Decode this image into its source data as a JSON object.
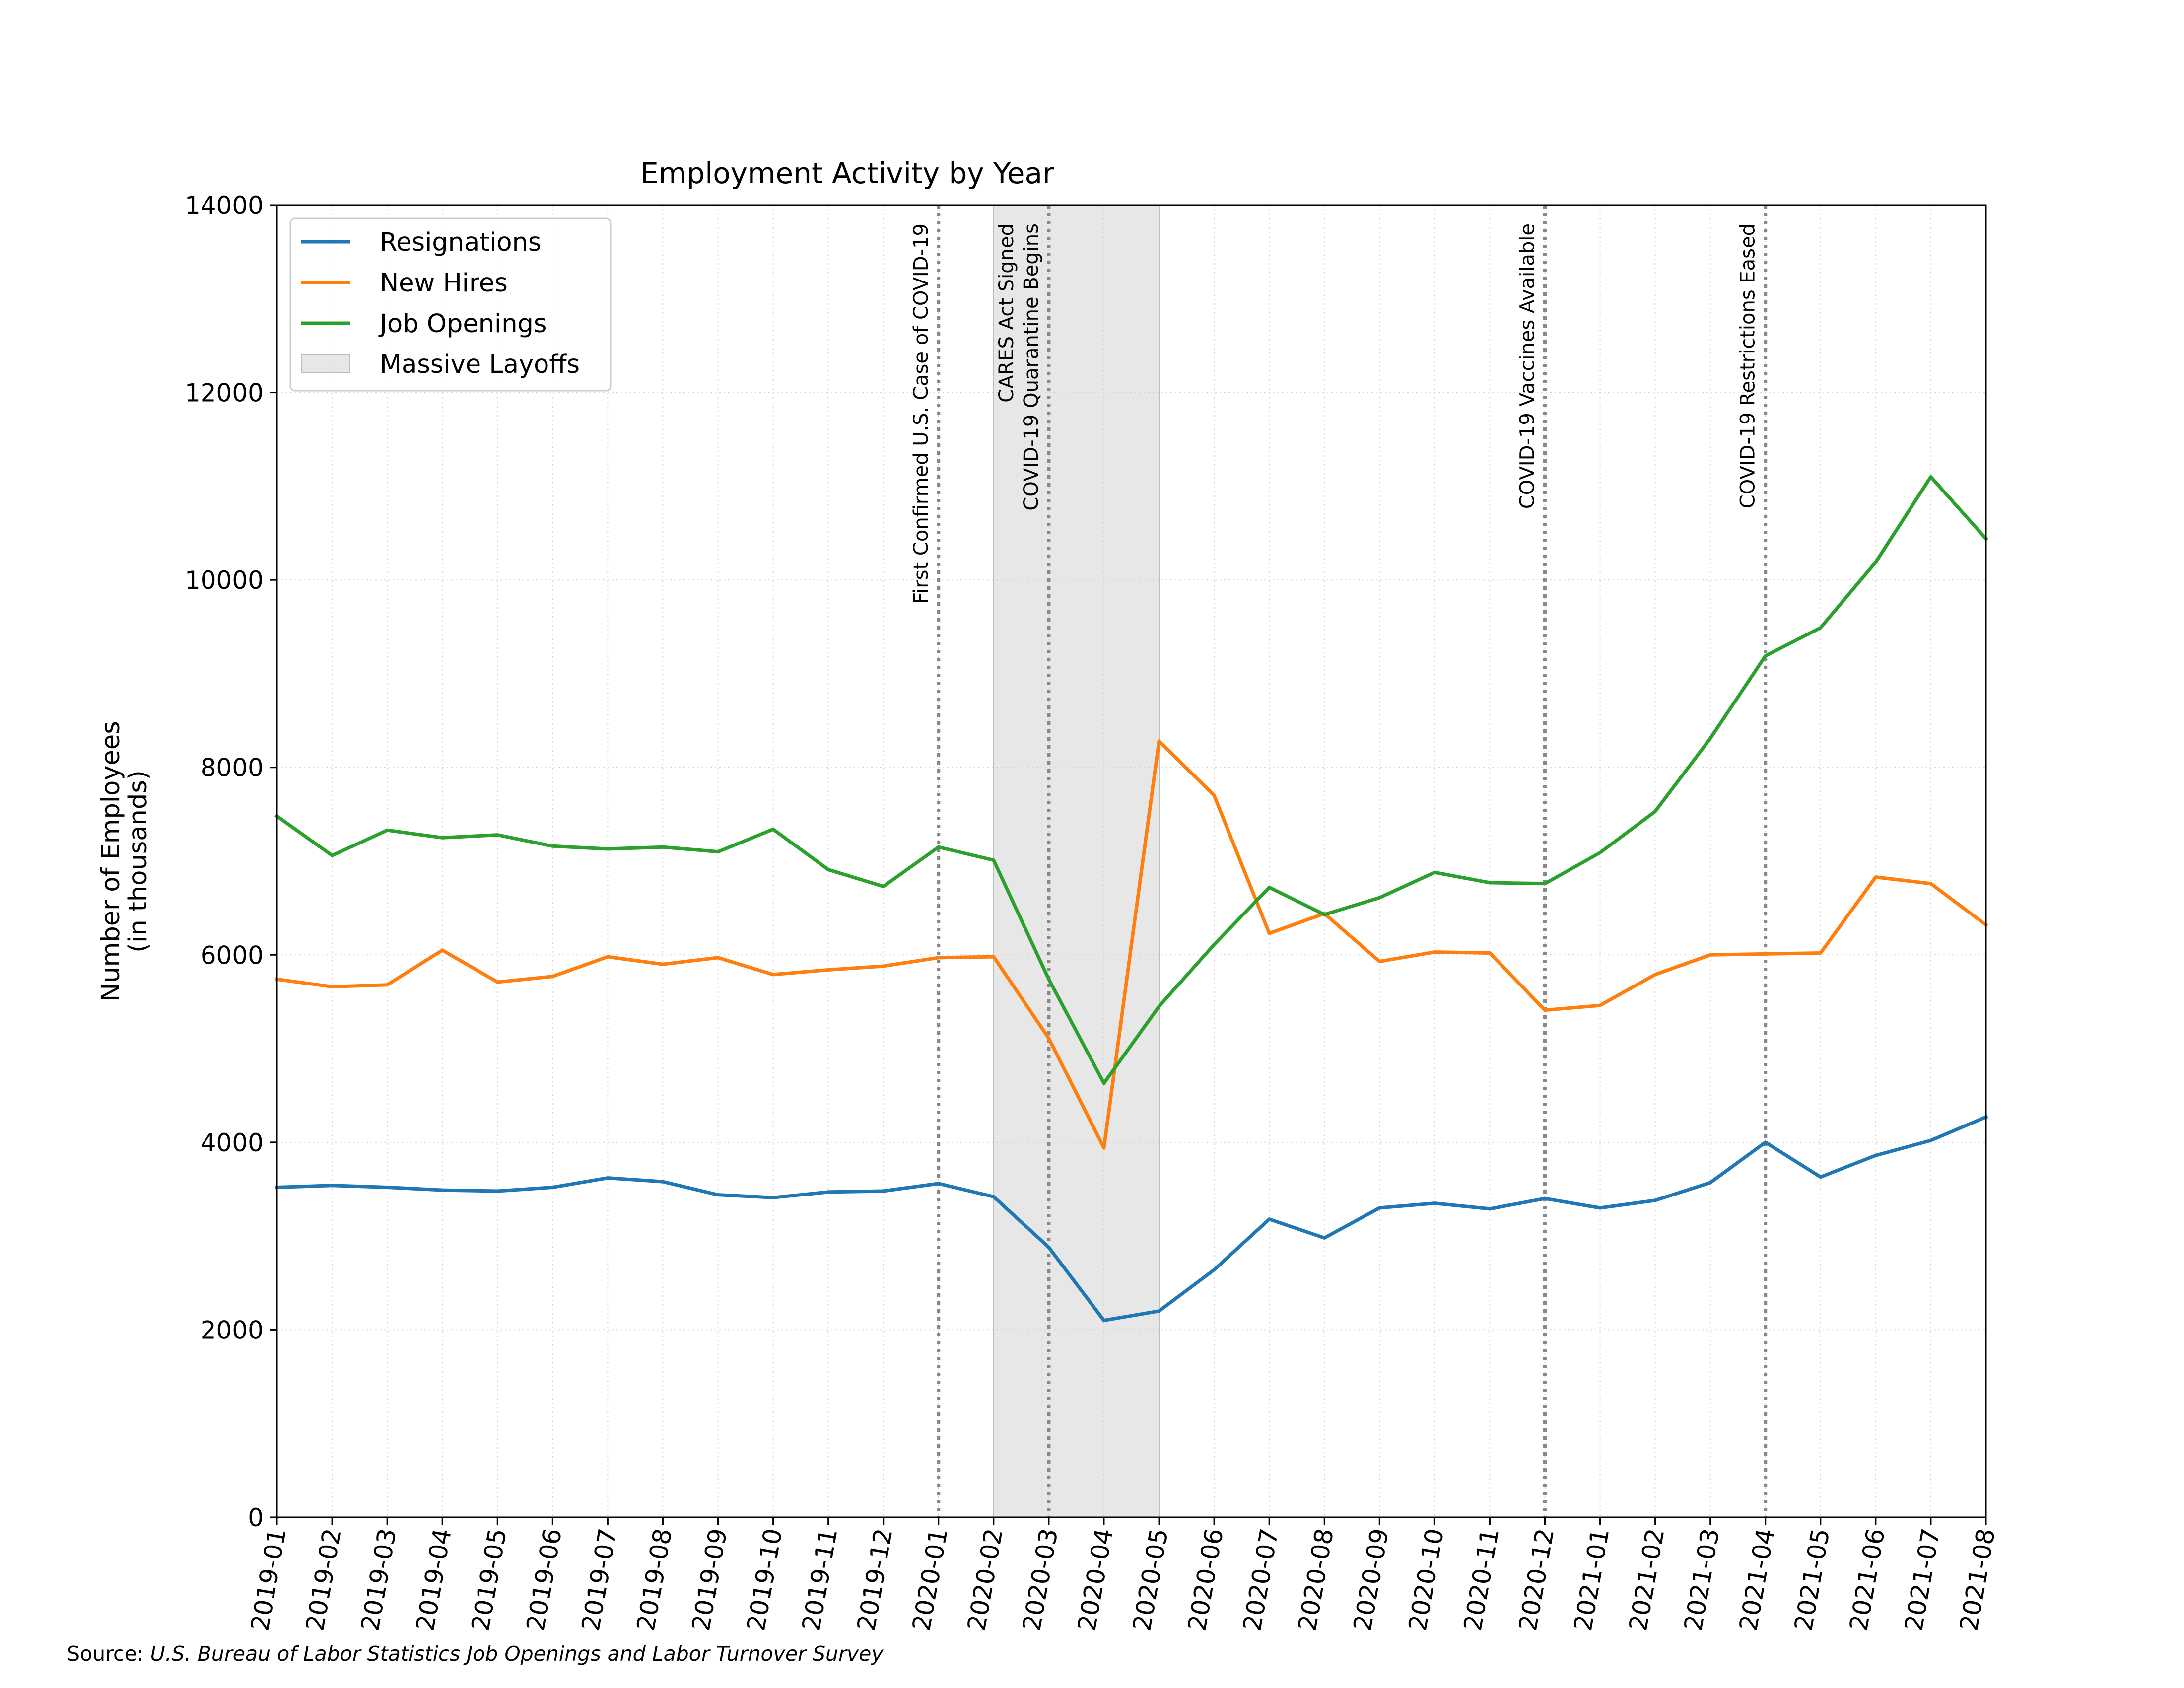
{
  "chart_data": {
    "type": "line",
    "title": "Employment Activity by Year",
    "ylabel_line1": "Number of Employees",
    "ylabel_line2": "(in thousands)",
    "xlabel": "",
    "ylim": [
      0,
      14000
    ],
    "yticks": [
      0,
      2000,
      4000,
      6000,
      8000,
      10000,
      12000,
      14000
    ],
    "grid": true,
    "legend_position": "upper-left",
    "x": [
      "2019-01",
      "2019-02",
      "2019-03",
      "2019-04",
      "2019-05",
      "2019-06",
      "2019-07",
      "2019-08",
      "2019-09",
      "2019-10",
      "2019-11",
      "2019-12",
      "2020-01",
      "2020-02",
      "2020-03",
      "2020-04",
      "2020-05",
      "2020-06",
      "2020-07",
      "2020-08",
      "2020-09",
      "2020-10",
      "2020-11",
      "2020-12",
      "2021-01",
      "2021-02",
      "2021-03",
      "2021-04",
      "2021-05",
      "2021-06",
      "2021-07",
      "2021-08"
    ],
    "series": [
      {
        "name": "Resignations",
        "color": "#1f77b4",
        "values": [
          3520,
          3540,
          3520,
          3490,
          3480,
          3520,
          3620,
          3580,
          3440,
          3410,
          3470,
          3480,
          3560,
          3420,
          2880,
          2100,
          2200,
          2640,
          3180,
          2980,
          3300,
          3350,
          3290,
          3400,
          3300,
          3380,
          3570,
          4000,
          3630,
          3860,
          4020,
          4270
        ]
      },
      {
        "name": "New Hires",
        "color": "#ff7f0e",
        "values": [
          5740,
          5660,
          5680,
          6050,
          5710,
          5770,
          5980,
          5900,
          5970,
          5790,
          5840,
          5880,
          5970,
          5980,
          5110,
          3940,
          8280,
          7700,
          6230,
          6440,
          5930,
          6030,
          6020,
          5410,
          5460,
          5790,
          6000,
          6010,
          6020,
          6830,
          6760,
          6320
        ]
      },
      {
        "name": "Job Openings",
        "color": "#2ca02c",
        "values": [
          7480,
          7060,
          7330,
          7250,
          7280,
          7160,
          7130,
          7150,
          7100,
          7340,
          6910,
          6730,
          7150,
          7010,
          5740,
          4630,
          5450,
          6110,
          6720,
          6430,
          6610,
          6880,
          6770,
          6760,
          7090,
          7530,
          8310,
          9190,
          9490,
          10190,
          11100,
          10440
        ]
      }
    ],
    "shaded_region": {
      "label": "Massive Layoffs",
      "start": "2020-02",
      "end": "2020-05",
      "color": "#d3d3d3"
    },
    "events": [
      {
        "date": "2020-01",
        "label": "First Confirmed U.S. Case of COVID-19"
      },
      {
        "date": "2020-03",
        "label_line1": "CARES Act Signed",
        "label_line2": "COVID-19 Quarantine Begins"
      },
      {
        "date": "2020-12",
        "label": "COVID-19 Vaccines Available"
      },
      {
        "date": "2021-04",
        "label": "COVID-19 Restrictions Eased"
      }
    ]
  },
  "source": {
    "prefix": "Source: ",
    "text": "U.S.  Bureau of Labor Statistics Job Openings and Labor Turnover Survey"
  }
}
